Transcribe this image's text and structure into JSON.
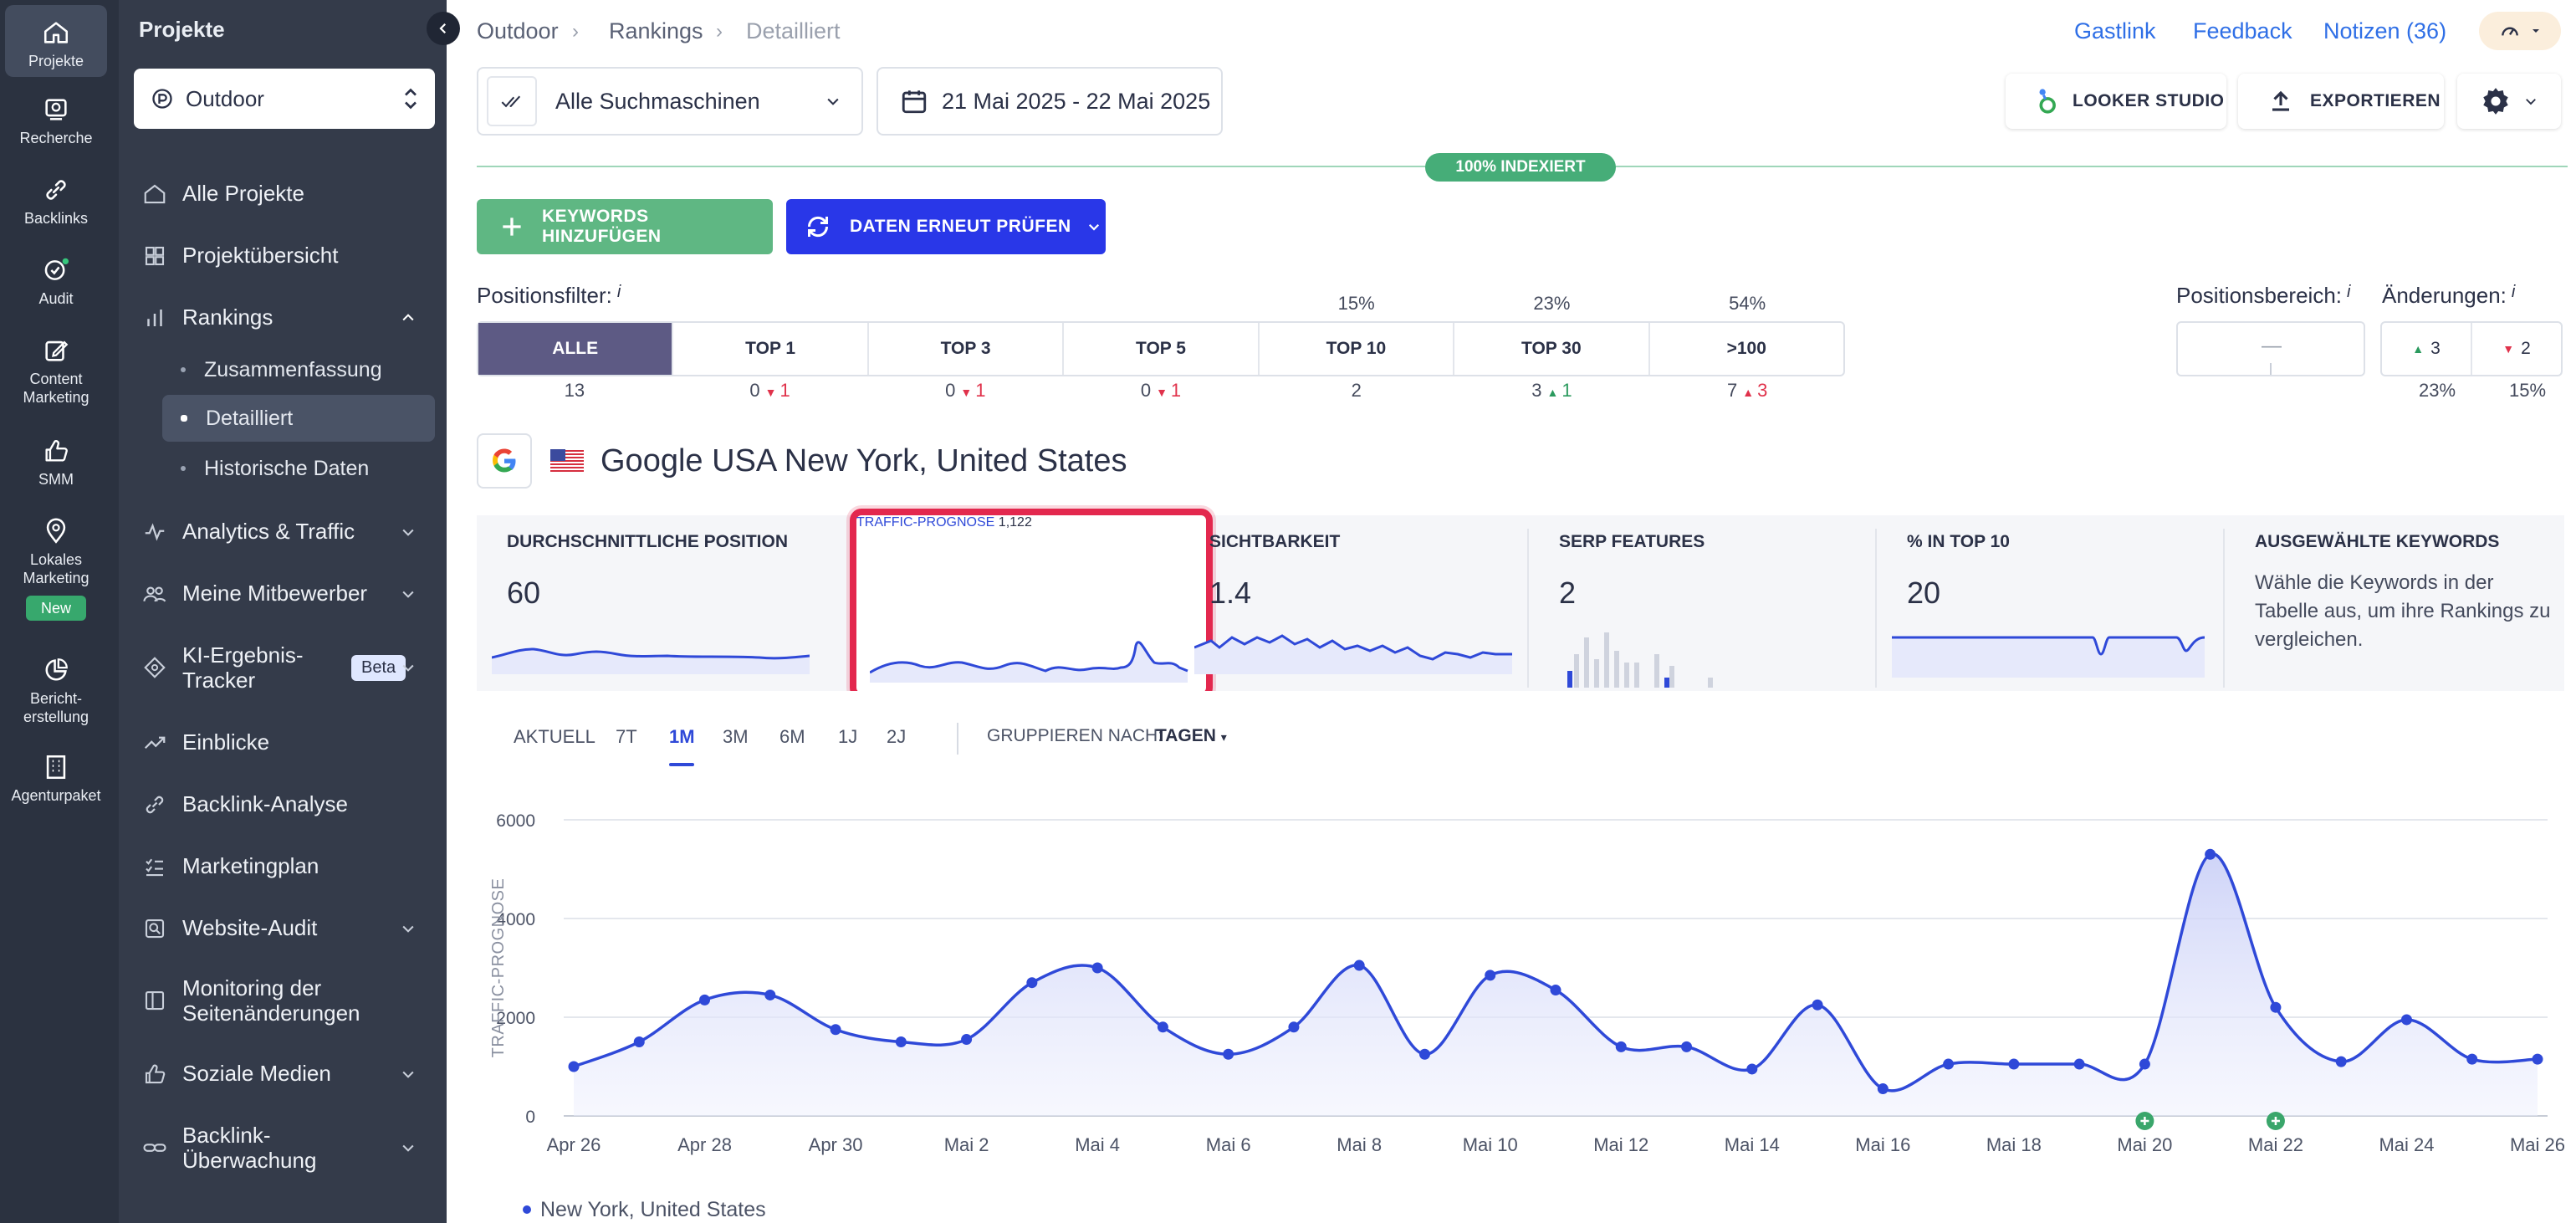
{
  "rail": [
    {
      "label": "Projekte",
      "icon": "home-icon"
    },
    {
      "label": "Recherche",
      "icon": "research-icon"
    },
    {
      "label": "Backlinks",
      "icon": "link-icon"
    },
    {
      "label": "Audit",
      "icon": "audit-icon"
    },
    {
      "label": "Content Marketing",
      "icon": "edit-icon"
    },
    {
      "label": "SMM",
      "icon": "thumbs-up-icon"
    },
    {
      "label": "Lokales Marketing",
      "icon": "map-pin-icon",
      "badge": "New"
    },
    {
      "label": "Bericht-erstellung",
      "icon": "report-icon"
    },
    {
      "label": "Agenturpaket",
      "icon": "building-icon"
    }
  ],
  "sidepanel": {
    "title": "Projekte",
    "project": "Outdoor",
    "nav": [
      {
        "label": "Alle Projekte"
      },
      {
        "label": "Projektübersicht"
      },
      {
        "label": "Rankings"
      },
      {
        "label": "Analytics & Traffic"
      },
      {
        "label": "Meine Mitbewerber"
      },
      {
        "label": "KI-Ergebnis-Tracker",
        "badge": "Beta"
      },
      {
        "label": "Einblicke"
      },
      {
        "label": "Backlink-Analyse"
      },
      {
        "label": "Marketingplan"
      },
      {
        "label": "Website-Audit"
      },
      {
        "label": "Monitoring der Seitenänderungen"
      },
      {
        "label": "Soziale Medien"
      },
      {
        "label": "Backlink-Überwachung"
      }
    ],
    "rankings_sub": [
      "Zusammenfassung",
      "Detailliert",
      "Historische Daten"
    ]
  },
  "breadcrumb": [
    "Outdoor",
    "Rankings",
    "Detailliert"
  ],
  "toplinks": {
    "guest": "Gastlink",
    "feedback": "Feedback",
    "notes": "Notizen (36)"
  },
  "toolbar": {
    "engine_select": "Alle Suchmaschinen",
    "date_range": "21 Mai 2025 - 22 Mai 2025",
    "looker": "LOOKER STUDIO",
    "export": "EXPORTIEREN"
  },
  "index_badge": "100% INDEXIERT",
  "actions": {
    "add_keywords": "KEYWORDS HINZUFÜGEN",
    "recheck": "DATEN ERNEUT PRÜFEN"
  },
  "position_filter": {
    "label": "Positionsfilter:",
    "info": "i",
    "cells": [
      {
        "label": "ALLE",
        "pct": "",
        "count": "13",
        "delta": "",
        "dir": ""
      },
      {
        "label": "TOP 1",
        "pct": "",
        "count": "0",
        "delta": "1",
        "dir": "down"
      },
      {
        "label": "TOP 3",
        "pct": "",
        "count": "0",
        "delta": "1",
        "dir": "down"
      },
      {
        "label": "TOP 5",
        "pct": "",
        "count": "0",
        "delta": "1",
        "dir": "down"
      },
      {
        "label": "TOP 10",
        "pct": "15%",
        "count": "2",
        "delta": "",
        "dir": ""
      },
      {
        "label": "TOP 30",
        "pct": "23%",
        "count": "3",
        "delta": "1",
        "dir": "up"
      },
      {
        "label": ">100",
        "pct": "54%",
        "count": "7",
        "delta": "3",
        "dir": "up"
      }
    ]
  },
  "position_range": {
    "label": "Positionsbereich:",
    "info": "i",
    "value": "—"
  },
  "changes": {
    "label": "Änderungen:",
    "info": "i",
    "up": "3",
    "down": "2",
    "up_pct": "23%",
    "down_pct": "15%"
  },
  "engine": {
    "title": "Google USA New York, United States"
  },
  "metrics": [
    {
      "title": "DURCHSCHNITTLICHE POSITION",
      "value": "60"
    },
    {
      "title": "TRAFFIC-PROGNOSE",
      "value": "1,122"
    },
    {
      "title": "SICHTBARKEIT",
      "value": "1.4"
    },
    {
      "title": "SERP FEATURES",
      "value": "2"
    },
    {
      "title": "% IN TOP 10",
      "value": "20"
    },
    {
      "title": "AUSGEWÄHLTE KEYWORDS",
      "desc": "Wähle die Keywords in der Tabelle aus, um ihre Rankings zu vergleichen."
    }
  ],
  "tabs": [
    "AKTUELL",
    "7T",
    "1M",
    "3M",
    "6M",
    "1J",
    "2J"
  ],
  "active_tab": "1M",
  "group_by": {
    "label": "GRUPPIEREN NACH:",
    "value": "TAGEN"
  },
  "chart_data": {
    "type": "area",
    "ylabel": "TRAFFIC-PROGNOSE",
    "ylim": [
      0,
      6000
    ],
    "yticks": [
      0,
      2000,
      4000,
      6000
    ],
    "x_labels": [
      "Apr 26",
      "Apr 28",
      "Apr 30",
      "Mai 2",
      "Mai 4",
      "Mai 6",
      "Mai 8",
      "Mai 10",
      "Mai 12",
      "Mai 14",
      "Mai 16",
      "Mai 18",
      "Mai 20",
      "Mai 22",
      "Mai 24",
      "Mai 26"
    ],
    "series": [
      {
        "name": "New York, United States",
        "values": [
          1000,
          1500,
          2350,
          2450,
          1750,
          1500,
          1550,
          2700,
          3000,
          1800,
          1250,
          1800,
          3050,
          1250,
          2850,
          2550,
          1400,
          1400,
          950,
          2250,
          550,
          1050,
          1050,
          1050,
          1050,
          5300,
          2200,
          1100,
          1950,
          1150,
          1150
        ]
      }
    ],
    "legend_position": "bottom-left",
    "grid": true,
    "markers": [
      "Mai 20",
      "Mai 22"
    ],
    "accent": "#2f49d8"
  }
}
